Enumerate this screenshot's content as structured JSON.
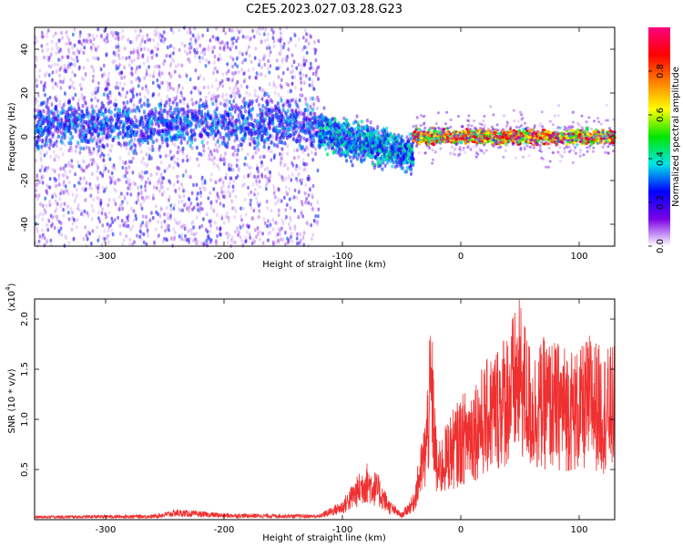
{
  "title": "C2E5.2023.027.03.28.G23",
  "chart_data": [
    {
      "type": "heatmap",
      "xlabel": "Height of straight line (km)",
      "ylabel": "Frequency (Hz)",
      "xlim": [
        -360,
        130
      ],
      "ylim": [
        -50,
        50
      ],
      "x_ticks": [
        -300,
        -200,
        -100,
        0,
        100
      ],
      "y_ticks": [
        -40,
        -20,
        0,
        20,
        40
      ],
      "colorbar": {
        "label": "Normalized spectral amplitude",
        "range": [
          0.0,
          1.0
        ],
        "ticks": [
          "0.0",
          "0.2",
          "0.4",
          "0.6",
          "0.8"
        ],
        "colors": [
          "#ffffff",
          "#7a00e6",
          "#0000ff",
          "#00e6e6",
          "#00e600",
          "#ffff00",
          "#ff8000",
          "#ff0000",
          "#ff0080"
        ]
      },
      "features": [
        {
          "x_range": [
            -360,
            -120
          ],
          "freq_center": 5,
          "freq_spread": 15,
          "level": 0.2,
          "background_speckle": "dense"
        },
        {
          "x_range": [
            -120,
            -40
          ],
          "freq_center_start": 2,
          "freq_center_end": -8,
          "level": 0.35
        },
        {
          "x_range": [
            -40,
            130
          ],
          "freq_center": 0,
          "freq_spread": 3,
          "level": 0.9
        }
      ]
    },
    {
      "type": "line",
      "xlabel": "Height of straight line (km)",
      "ylabel": "SNR (10 * v/v)",
      "y_multiplier_label": "(x10",
      "y_multiplier_exp": "4",
      "xlim": [
        -360,
        130
      ],
      "ylim": [
        0,
        2.2
      ],
      "x_ticks": [
        -300,
        -200,
        -100,
        0,
        100
      ],
      "y_ticks": [
        0.5,
        1.0,
        1.5,
        2.0
      ],
      "y_tick_labels": [
        "0.5",
        "1.0",
        "1.5",
        "2.0"
      ],
      "color": "#f03030",
      "series_envelope": [
        {
          "x": -360,
          "y": 0.03
        },
        {
          "x": -260,
          "y": 0.04
        },
        {
          "x": -240,
          "y": 0.08
        },
        {
          "x": -200,
          "y": 0.05
        },
        {
          "x": -120,
          "y": 0.04
        },
        {
          "x": -100,
          "y": 0.15
        },
        {
          "x": -90,
          "y": 0.3
        },
        {
          "x": -80,
          "y": 0.45
        },
        {
          "x": -70,
          "y": 0.35
        },
        {
          "x": -60,
          "y": 0.15
        },
        {
          "x": -50,
          "y": 0.05
        },
        {
          "x": -40,
          "y": 0.2
        },
        {
          "x": -30,
          "y": 0.8
        },
        {
          "x": -25,
          "y": 1.6
        },
        {
          "x": -20,
          "y": 0.55
        },
        {
          "x": -10,
          "y": 0.8
        },
        {
          "x": 0,
          "y": 0.95
        },
        {
          "x": 20,
          "y": 1.2
        },
        {
          "x": 40,
          "y": 1.5
        },
        {
          "x": 50,
          "y": 1.7
        },
        {
          "x": 60,
          "y": 1.3
        },
        {
          "x": 70,
          "y": 1.4
        },
        {
          "x": 90,
          "y": 1.35
        },
        {
          "x": 100,
          "y": 1.3
        },
        {
          "x": 110,
          "y": 1.45
        },
        {
          "x": 120,
          "y": 1.3
        },
        {
          "x": 130,
          "y": 1.35
        }
      ]
    }
  ]
}
